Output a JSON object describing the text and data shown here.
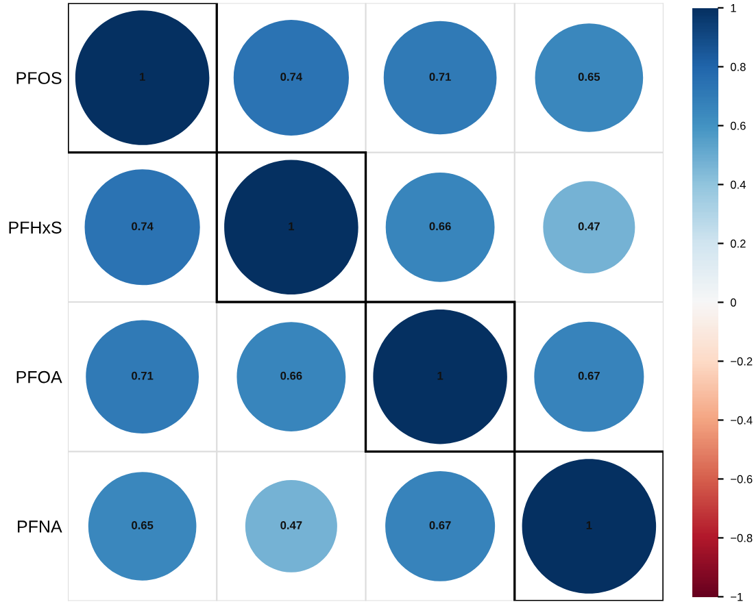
{
  "chart_data": {
    "type": "heatmap",
    "categories": [
      null,
      null,
      null,
      null
    ],
    "y_categories": [
      "PFOS",
      "PFHxS",
      "PFOA",
      "PFNA"
    ],
    "cells": [
      [
        1,
        0.74,
        0.71,
        0.65
      ],
      [
        0.74,
        1,
        0.66,
        0.47
      ],
      [
        0.71,
        0.66,
        1,
        0.67
      ],
      [
        0.65,
        0.47,
        0.67,
        1
      ]
    ],
    "data_labels": true,
    "clim": [
      -1,
      1
    ],
    "cticks": [
      {
        "value": -1,
        "label": "−1"
      },
      {
        "value": -0.8,
        "label": "−0.8"
      },
      {
        "value": -0.6,
        "label": "−0.6"
      },
      {
        "value": -0.4,
        "label": "−0.4"
      },
      {
        "value": -0.2,
        "label": "−0.2"
      },
      0,
      0.2,
      0.4,
      0.6,
      0.8,
      1
    ],
    "grid": true
  }
}
